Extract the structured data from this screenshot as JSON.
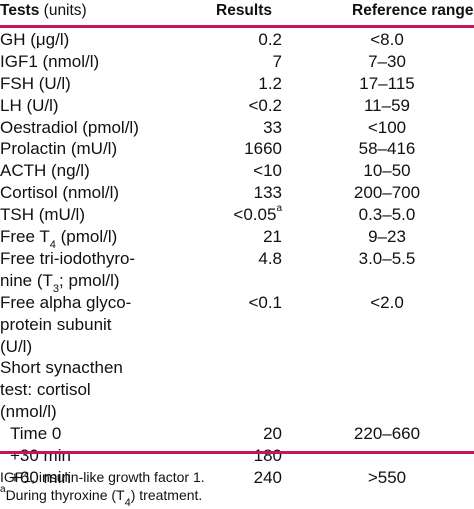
{
  "header": {
    "col_test_label": "Tests",
    "col_test_units": "(units)",
    "col_results": "Results",
    "col_reference": "Reference range"
  },
  "rows": [
    {
      "test_lines": [
        "GH (μg/l)"
      ],
      "result": "0.2",
      "reference": "<8.0"
    },
    {
      "test_lines": [
        "IGF1 (nmol/l)"
      ],
      "result": "7",
      "reference": "7–30"
    },
    {
      "test_lines": [
        "FSH (U/l)"
      ],
      "result": "1.2",
      "reference": "17–115"
    },
    {
      "test_lines": [
        "LH (U/l)"
      ],
      "result": "<0.2",
      "reference": "11–59"
    },
    {
      "test_lines": [
        "Oestradiol (pmol/l)"
      ],
      "result": "33",
      "reference": "<100"
    },
    {
      "test_lines": [
        "Prolactin (mU/l)"
      ],
      "result": "1660",
      "reference": "58–416"
    },
    {
      "test_lines": [
        "ACTH (ng/l)"
      ],
      "result": "<10",
      "reference": "10–50"
    },
    {
      "test_lines": [
        "Cortisol (nmol/l)"
      ],
      "result": "133",
      "reference": "200–700"
    },
    {
      "test_lines": [
        "TSH (mU/l)"
      ],
      "result": "<0.05",
      "result_sup": "a",
      "reference": "0.3–5.0"
    },
    {
      "test_lines": [
        "Free T",
        "4",
        " (pmol/l)"
      ],
      "result": "21",
      "reference": "9–23"
    },
    {
      "test_lines": [
        "Free tri-iodothyro-",
        "nine (T",
        "3",
        "; pmol/l)"
      ],
      "result": "4.8",
      "reference": "3.0–5.5"
    },
    {
      "test_lines": [
        "Free alpha glyco-",
        "protein subunit",
        "(U/l)"
      ],
      "result": "<0.1",
      "reference": "<2.0"
    },
    {
      "test_lines": [
        "Short synacthen",
        "test: cortisol",
        "(nmol/l)"
      ],
      "result": "",
      "reference": ""
    },
    {
      "test_lines": [
        "Time 0"
      ],
      "result": "20",
      "reference": "220–660"
    },
    {
      "test_lines": [
        "+30 min"
      ],
      "result": "180",
      "reference": ""
    },
    {
      "test_lines": [
        "+60 min"
      ],
      "result": "240",
      "reference": ">550"
    }
  ],
  "footnotes": {
    "abbrev": "IGF1, insulin-like growth factor 1.",
    "a_marker": "a",
    "a_text": "During thyroxine (T",
    "a_sub": "4",
    "a_tail": ") treatment."
  },
  "colors": {
    "rule": "#c2185b",
    "text": "#111111",
    "background": "#ffffff"
  }
}
